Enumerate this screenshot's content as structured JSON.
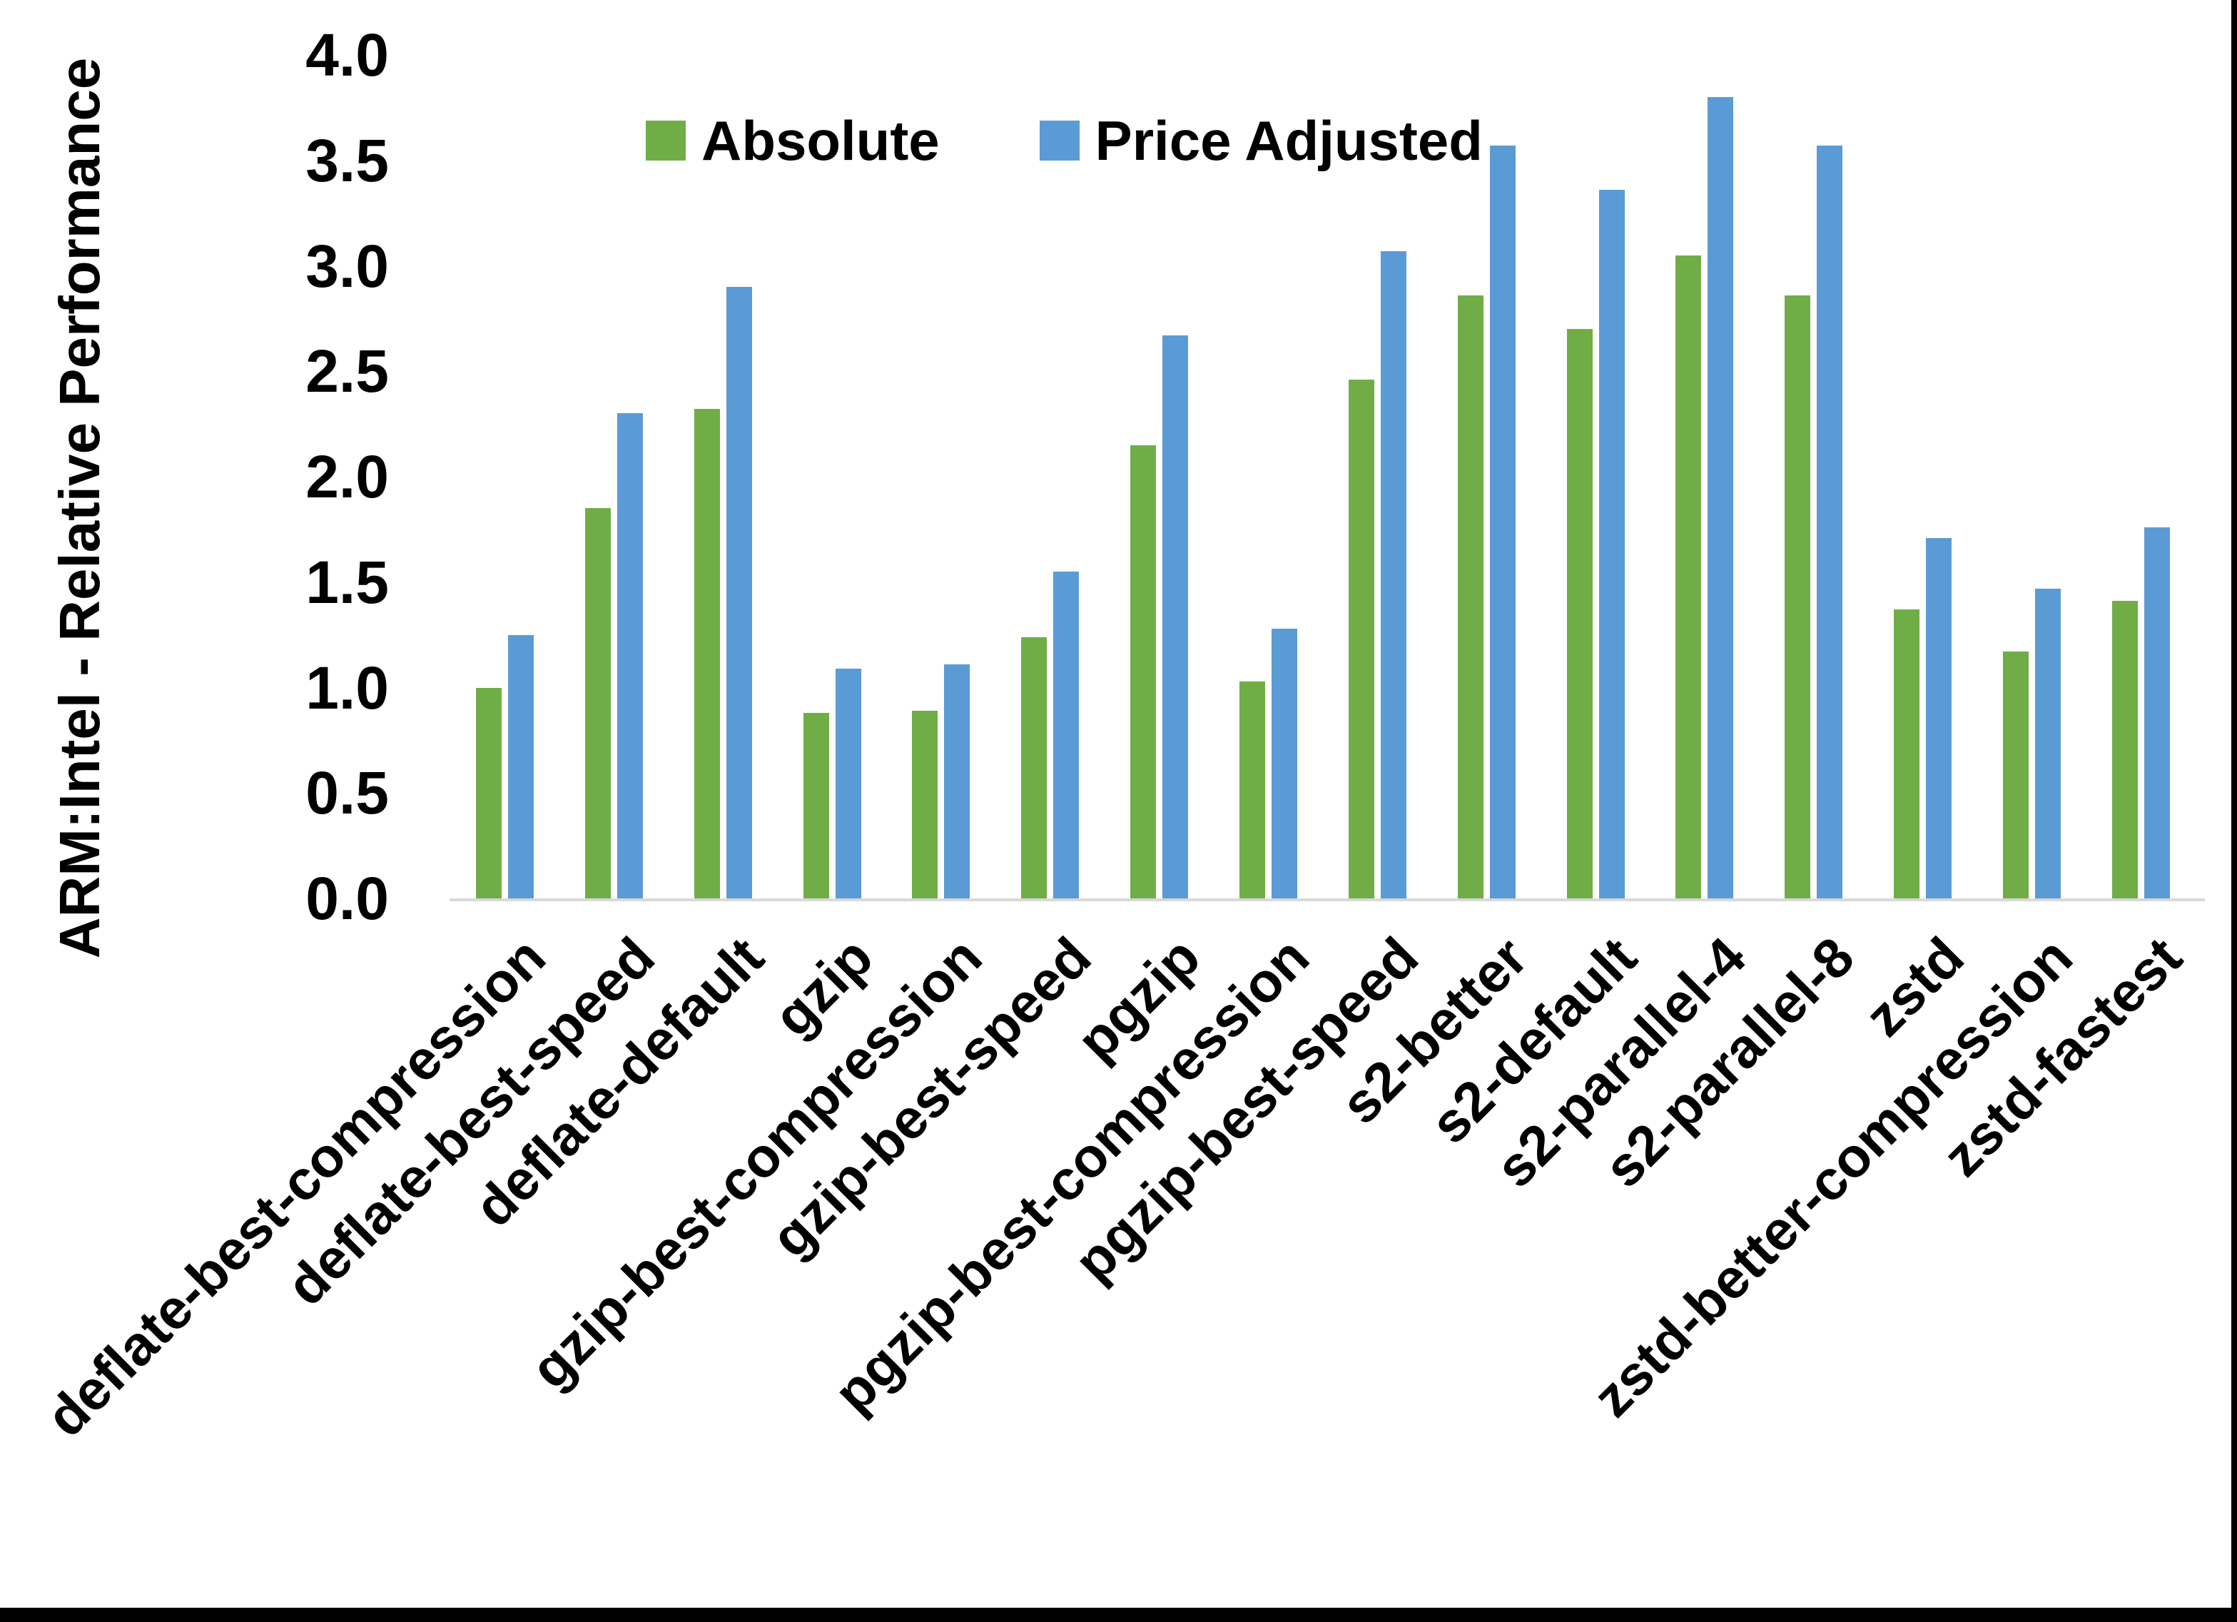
{
  "chart_data": {
    "type": "bar",
    "title": "",
    "xlabel": "",
    "ylabel": "ARM:Intel - Relative Performance",
    "ylim": [
      0.0,
      4.0
    ],
    "ytick_step": 0.5,
    "yticks": [
      "4.0",
      "3.5",
      "3.0",
      "2.5",
      "2.0",
      "1.5",
      "1.0",
      "0.5",
      "0.0"
    ],
    "grid": false,
    "legend_position": "top-center",
    "categories": [
      "deflate-best-compression",
      "deflate-best-speed",
      "deflate-default",
      "gzip",
      "gzip-best-compression",
      "gzip-best-speed",
      "pgzip",
      "pgzip-best-compression",
      "pgzip-best-speed",
      "s2-better",
      "s2-default",
      "s2-parallel-4",
      "s2-parallel-8",
      "zstd",
      "zstd-better-compression",
      "zstd-fastest"
    ],
    "series": [
      {
        "name": "Absolute",
        "color": "#70AD47",
        "values": [
          1.0,
          1.85,
          2.32,
          0.88,
          0.89,
          1.24,
          2.15,
          1.03,
          2.46,
          2.86,
          2.7,
          3.05,
          2.86,
          1.37,
          1.17,
          1.41
        ]
      },
      {
        "name": "Price Adjusted",
        "color": "#5B9BD5",
        "values": [
          1.25,
          2.3,
          2.9,
          1.09,
          1.11,
          1.55,
          2.67,
          1.28,
          3.07,
          3.57,
          3.36,
          3.8,
          3.57,
          1.71,
          1.47,
          1.76
        ]
      }
    ]
  },
  "colors": {
    "background": "#FFFFFF",
    "axis_line": "#D9D9D9",
    "text": "#000000",
    "frame": "#000000"
  }
}
